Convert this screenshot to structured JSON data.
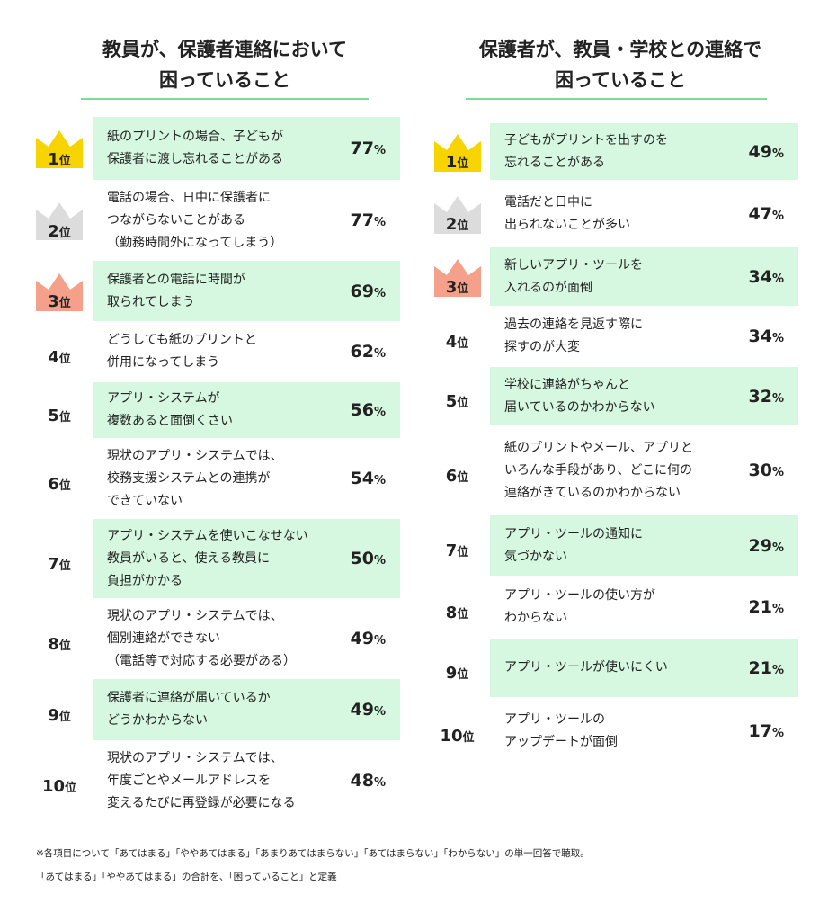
{
  "left": {
    "title": "教員が、保護者連絡において\n困っていること",
    "items": [
      {
        "rank": 1,
        "text": "紙のプリントの場合、子どもが\n保護者に渡し忘れることがある",
        "value": 77
      },
      {
        "rank": 2,
        "text": "電話の場合、日中に保護者に\nつながらないことがある\n（勤務時間外になってしまう）",
        "value": 77
      },
      {
        "rank": 3,
        "text": "保護者との電話に時間が\n取られてしまう",
        "value": 69
      },
      {
        "rank": 4,
        "text": "どうしても紙のプリントと\n併用になってしまう",
        "value": 62
      },
      {
        "rank": 5,
        "text": "アプリ・システムが\n複数あると面倒くさい",
        "value": 56
      },
      {
        "rank": 6,
        "text": "現状のアプリ・システムでは、\n校務支援システムとの連携が\nできていない",
        "value": 54
      },
      {
        "rank": 7,
        "text": "アプリ・システムを使いこなせない\n教員がいると、使える教員に\n負担がかかる",
        "value": 50
      },
      {
        "rank": 8,
        "text": "現状のアプリ・システムでは、\n個別連絡ができない\n（電話等で対応する必要がある）",
        "value": 49
      },
      {
        "rank": 9,
        "text": "保護者に連絡が届いているか\nどうかわからない",
        "value": 49
      },
      {
        "rank": 10,
        "text": "現状のアプリ・システムでは、\n年度ごとやメールアドレスを\n変えるたびに再登録が必要になる",
        "value": 48
      }
    ]
  },
  "right": {
    "title": "保護者が、教員・学校との連絡で\n困っていること",
    "items": [
      {
        "rank": 1,
        "text": "子どもがプリントを出すのを\n忘れることがある",
        "value": 49
      },
      {
        "rank": 2,
        "text": "電話だと日中に\n出られないことが多い",
        "value": 47
      },
      {
        "rank": 3,
        "text": "新しいアプリ・ツールを\n入れるのが面倒",
        "value": 34
      },
      {
        "rank": 4,
        "text": "過去の連絡を見返す際に\n探すのが大変",
        "value": 34
      },
      {
        "rank": 5,
        "text": "学校に連絡がちゃんと\n届いているのかわからない",
        "value": 32
      },
      {
        "rank": 6,
        "text": "紙のプリントやメール、アプリと\nいろんな手段があり、どこに何の\n連絡がきているのかわからない",
        "value": 30
      },
      {
        "rank": 7,
        "text": "アプリ・ツールの通知に\n気づかない",
        "value": 29
      },
      {
        "rank": 8,
        "text": "アプリ・ツールの使い方が\nわからない",
        "value": 21
      },
      {
        "rank": 9,
        "text": "アプリ・ツールが使いにくい",
        "value": 21
      },
      {
        "rank": 10,
        "text": "アプリ・ツールの\nアップデートが面倒",
        "value": 17
      }
    ]
  },
  "rank_suffix": "位",
  "unit": "%",
  "footnote": "※各項目について「あてはまる」「ややあてはまる」「あまりあてはまらない」「あてはまらない」「わからない」の単一回答で聴取。\n「あてはまる」「ややあてはまる」の合計を、「困っていること」と定義"
}
